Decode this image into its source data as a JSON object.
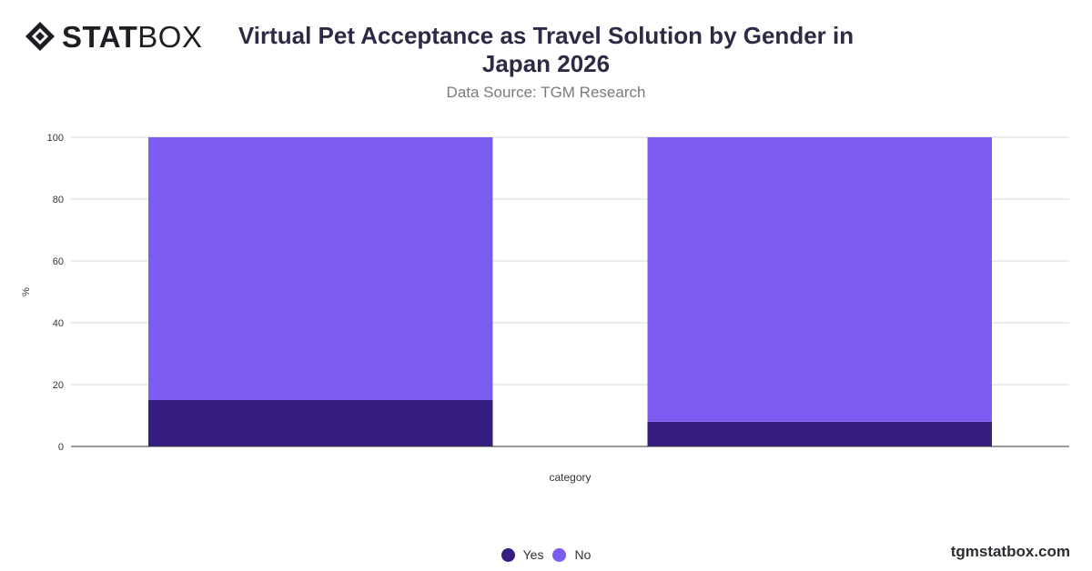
{
  "brand": {
    "logo_bold": "STAT",
    "logo_light": "BOX",
    "watermark": "tgmstatbox.com"
  },
  "colors": {
    "yes": "#361d82",
    "no": "#7c5cf0",
    "grid": "#d9d9d9",
    "axis": "#333333"
  },
  "chart_data": {
    "type": "bar",
    "stacked": true,
    "title": "Virtual Pet Acceptance as Travel Solution by Gender in Japan 2026",
    "subtitle": "Data Source: TGM Research",
    "xlabel": "category",
    "ylabel": "%",
    "ylim": [
      0,
      100
    ],
    "yticks": [
      0,
      20,
      40,
      60,
      80,
      100
    ],
    "categories": [
      "",
      ""
    ],
    "series": [
      {
        "name": "Yes",
        "values": [
          15,
          8
        ]
      },
      {
        "name": "No",
        "values": [
          85,
          92
        ]
      }
    ],
    "legend": "bottom-center",
    "grid": true
  }
}
